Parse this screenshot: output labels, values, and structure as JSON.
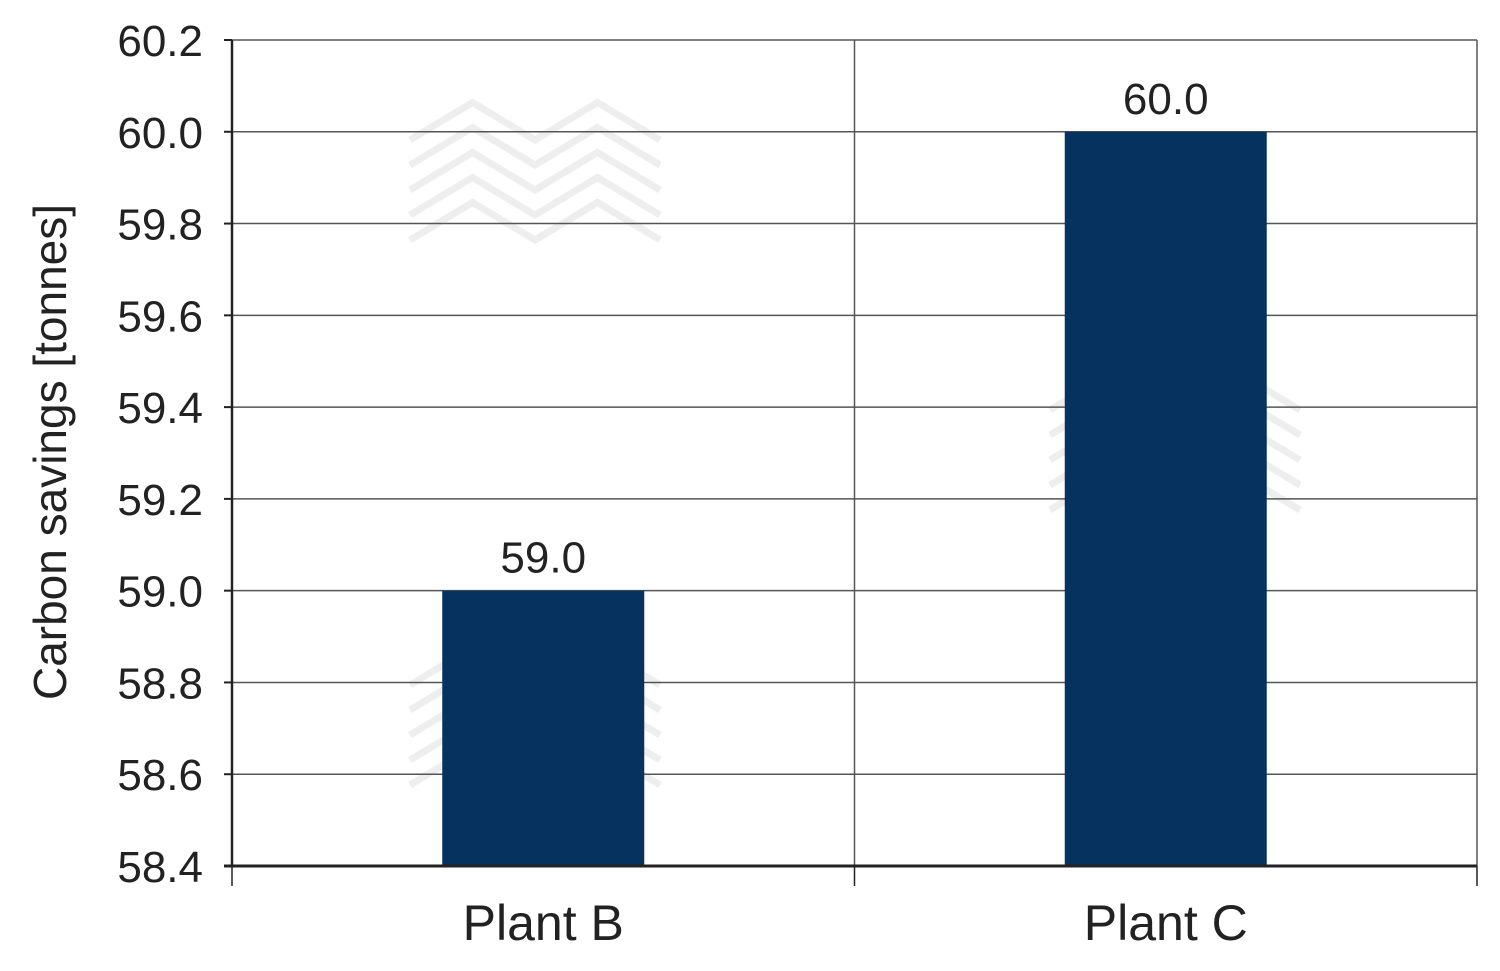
{
  "chart_data": {
    "type": "bar",
    "title": "",
    "xlabel": "",
    "ylabel": "Carbon savings [tonnes]",
    "categories": [
      "Plant B",
      "Plant C"
    ],
    "values": [
      59.0,
      60.0
    ],
    "value_labels": [
      "59.0",
      "60.0"
    ],
    "ylim": [
      58.4,
      60.2
    ],
    "yticks": [
      58.4,
      58.6,
      58.8,
      59.0,
      59.2,
      59.4,
      59.6,
      59.8,
      60.0,
      60.2
    ],
    "ytick_labels": [
      "58.4",
      "58.6",
      "58.8",
      "59.0",
      "59.2",
      "59.4",
      "59.6",
      "59.8",
      "60.0",
      "60.2"
    ],
    "grid": true,
    "legend": "none",
    "colors": {
      "bar": "#06325f",
      "grid": "#555555",
      "axis": "#222222",
      "text": "#222222"
    }
  }
}
